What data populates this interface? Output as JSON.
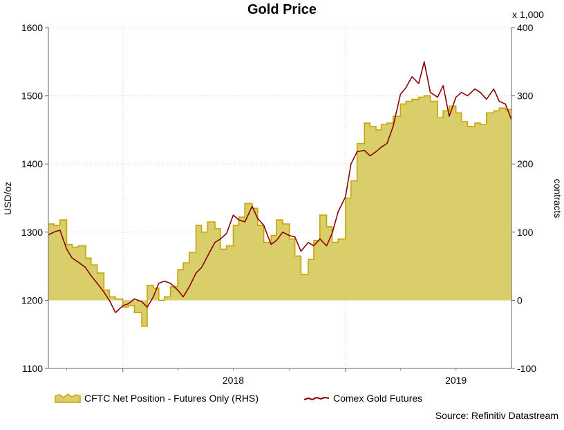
{
  "chart_data": {
    "type": "line",
    "title": "Gold Price",
    "left_axis": {
      "label": "USD/oz",
      "ticks": [
        "1100",
        "1200",
        "1300",
        "1400",
        "1500",
        "1600"
      ],
      "range": [
        1100,
        1600
      ]
    },
    "right_axis": {
      "label": "contracts",
      "multiplier_label": "x 1,000",
      "ticks": [
        "-100",
        "0",
        "100",
        "200",
        "300",
        "400"
      ],
      "range": [
        -100,
        400
      ]
    },
    "x_ticks": [
      "2018",
      "2019"
    ],
    "x_range": [
      "2017-09-01",
      "2019-09-30"
    ],
    "grid": true,
    "legend_position": "bottom",
    "series": [
      {
        "name": "CFTC Net Position - Futures Only (RHS)",
        "kind": "area",
        "axis": "right",
        "color": "#c8a400",
        "fill": "#d9cf6a",
        "x": [
          "2017-09-01",
          "2017-09-10",
          "2017-09-20",
          "2017-10-01",
          "2017-10-10",
          "2017-10-20",
          "2017-11-01",
          "2017-11-10",
          "2017-11-20",
          "2017-12-01",
          "2017-12-10",
          "2017-12-20",
          "2018-01-01",
          "2018-01-10",
          "2018-01-20",
          "2018-02-01",
          "2018-02-10",
          "2018-02-20",
          "2018-03-01",
          "2018-03-10",
          "2018-03-20",
          "2018-04-01",
          "2018-04-10",
          "2018-04-20",
          "2018-05-01",
          "2018-05-10",
          "2018-05-20",
          "2018-06-01",
          "2018-06-10",
          "2018-06-20",
          "2018-07-01",
          "2018-07-10",
          "2018-07-20",
          "2018-08-01",
          "2018-08-10",
          "2018-08-20",
          "2018-09-01",
          "2018-09-10",
          "2018-09-20",
          "2018-10-01",
          "2018-10-10",
          "2018-10-20",
          "2018-11-01",
          "2018-11-10",
          "2018-11-20",
          "2018-12-01",
          "2018-12-10",
          "2018-12-20",
          "2019-01-01",
          "2019-01-10",
          "2019-01-20",
          "2019-02-01",
          "2019-02-10",
          "2019-02-20",
          "2019-03-01",
          "2019-03-10",
          "2019-03-20",
          "2019-04-01",
          "2019-04-10",
          "2019-04-20",
          "2019-05-01",
          "2019-05-10",
          "2019-05-20",
          "2019-06-01",
          "2019-06-10",
          "2019-06-20",
          "2019-07-01",
          "2019-07-10",
          "2019-07-20",
          "2019-08-01",
          "2019-08-10",
          "2019-08-20",
          "2019-09-01",
          "2019-09-10",
          "2019-09-20",
          "2019-09-30"
        ],
        "y": [
          112,
          110,
          118,
          82,
          78,
          80,
          62,
          52,
          40,
          15,
          5,
          2,
          -10,
          -8,
          -18,
          -38,
          22,
          18,
          0,
          5,
          20,
          45,
          55,
          70,
          110,
          100,
          115,
          105,
          75,
          80,
          110,
          122,
          142,
          135,
          110,
          85,
          95,
          118,
          112,
          90,
          65,
          38,
          60,
          88,
          125,
          108,
          85,
          90,
          150,
          175,
          230,
          260,
          255,
          250,
          258,
          260,
          270,
          288,
          292,
          295,
          298,
          300,
          292,
          268,
          278,
          285,
          275,
          262,
          255,
          260,
          258,
          275,
          278,
          282,
          280,
          280
        ],
        "values": [
          112,
          110,
          118,
          82,
          78,
          80,
          62,
          52,
          40,
          15,
          5,
          2,
          -10,
          -8,
          -18,
          -38,
          22,
          18,
          0,
          5,
          20,
          45,
          55,
          70,
          110,
          100,
          115,
          105,
          75,
          80,
          110,
          122,
          142,
          135,
          110,
          85,
          95,
          118,
          112,
          90,
          65,
          38,
          60,
          88,
          125,
          108,
          85,
          90,
          150,
          175,
          230,
          260,
          255,
          250,
          258,
          260,
          270,
          288,
          292,
          295,
          298,
          300,
          292,
          268,
          278,
          285,
          275,
          262,
          255,
          260,
          258,
          275,
          278,
          282,
          280,
          280
        ]
      },
      {
        "name": "Comex Gold Futures",
        "kind": "line",
        "axis": "left",
        "color": "#8b0000",
        "x": [
          "2017-09-01",
          "2017-09-10",
          "2017-09-20",
          "2017-10-01",
          "2017-10-10",
          "2017-10-20",
          "2017-11-01",
          "2017-11-10",
          "2017-11-20",
          "2017-12-01",
          "2017-12-10",
          "2017-12-20",
          "2018-01-01",
          "2018-01-10",
          "2018-01-20",
          "2018-02-01",
          "2018-02-10",
          "2018-02-20",
          "2018-03-01",
          "2018-03-10",
          "2018-03-20",
          "2018-04-01",
          "2018-04-10",
          "2018-04-20",
          "2018-05-01",
          "2018-05-10",
          "2018-05-20",
          "2018-06-01",
          "2018-06-10",
          "2018-06-20",
          "2018-07-01",
          "2018-07-10",
          "2018-07-20",
          "2018-08-01",
          "2018-08-10",
          "2018-08-20",
          "2018-09-01",
          "2018-09-10",
          "2018-09-20",
          "2018-10-01",
          "2018-10-10",
          "2018-10-20",
          "2018-11-01",
          "2018-11-10",
          "2018-11-20",
          "2018-12-01",
          "2018-12-10",
          "2018-12-20",
          "2019-01-01",
          "2019-01-10",
          "2019-01-20",
          "2019-02-01",
          "2019-02-10",
          "2019-02-20",
          "2019-03-01",
          "2019-03-10",
          "2019-03-20",
          "2019-04-01",
          "2019-04-10",
          "2019-04-20",
          "2019-05-01",
          "2019-05-10",
          "2019-05-20",
          "2019-06-01",
          "2019-06-10",
          "2019-06-20",
          "2019-07-01",
          "2019-07-10",
          "2019-07-20",
          "2019-08-01",
          "2019-08-10",
          "2019-08-20",
          "2019-09-01",
          "2019-09-10",
          "2019-09-20",
          "2019-09-30"
        ],
        "y": [
          1296,
          1300,
          1303,
          1275,
          1262,
          1256,
          1248,
          1236,
          1225,
          1212,
          1200,
          1182,
          1192,
          1195,
          1202,
          1198,
          1190,
          1205,
          1225,
          1228,
          1225,
          1215,
          1205,
          1220,
          1240,
          1248,
          1265,
          1285,
          1290,
          1298,
          1325,
          1318,
          1315,
          1338,
          1320,
          1310,
          1282,
          1288,
          1300,
          1295,
          1293,
          1272,
          1285,
          1280,
          1290,
          1280,
          1298,
          1330,
          1352,
          1400,
          1418,
          1420,
          1412,
          1418,
          1425,
          1430,
          1455,
          1502,
          1512,
          1528,
          1518,
          1550,
          1505,
          1498,
          1515,
          1470,
          1498,
          1505,
          1500,
          1510,
          1505,
          1495,
          1510,
          1492,
          1488,
          1465
        ],
        "values": [
          1296,
          1300,
          1303,
          1275,
          1262,
          1256,
          1248,
          1236,
          1225,
          1212,
          1200,
          1182,
          1192,
          1195,
          1202,
          1198,
          1190,
          1205,
          1225,
          1228,
          1225,
          1215,
          1205,
          1220,
          1240,
          1248,
          1265,
          1285,
          1290,
          1298,
          1325,
          1318,
          1315,
          1338,
          1320,
          1310,
          1282,
          1288,
          1300,
          1295,
          1293,
          1272,
          1285,
          1280,
          1290,
          1280,
          1298,
          1330,
          1352,
          1400,
          1418,
          1420,
          1412,
          1418,
          1425,
          1430,
          1455,
          1502,
          1512,
          1528,
          1518,
          1550,
          1505,
          1498,
          1515,
          1470,
          1498,
          1505,
          1500,
          1510,
          1505,
          1495,
          1510,
          1492,
          1488,
          1465
        ]
      }
    ],
    "source": "Source: Refinitiv Datastream"
  }
}
